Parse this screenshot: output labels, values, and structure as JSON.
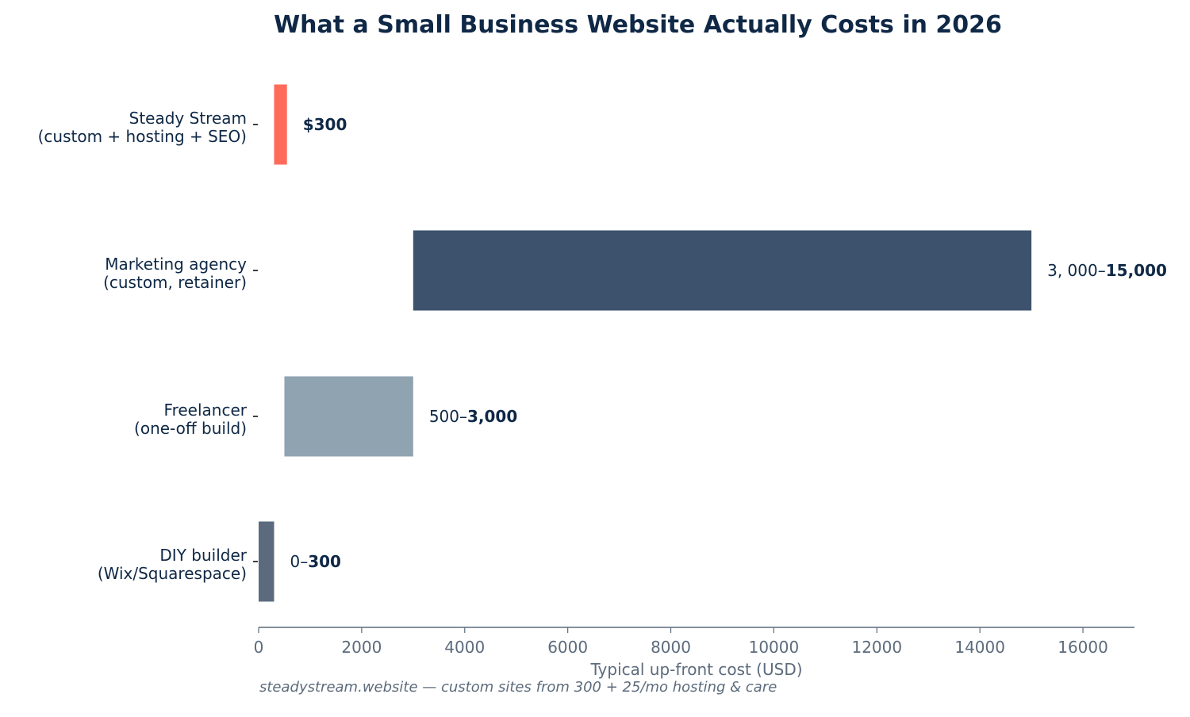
{
  "chart_data": {
    "type": "bar",
    "orientation": "horizontal",
    "title": "What a Small Business Website Actually Costs in 2026",
    "xlabel": "Typical up-front cost (USD)",
    "ylabel": "",
    "xlim": [
      0,
      17000
    ],
    "xticks": [
      0,
      2000,
      4000,
      6000,
      8000,
      10000,
      12000,
      14000,
      16000
    ],
    "grid": false,
    "categories": [
      [
        "Steady Stream",
        "(custom + hosting + SEO)"
      ],
      [
        "Marketing agency",
        "(custom, retainer)"
      ],
      [
        "Freelancer",
        "(one-off build)"
      ],
      [
        "DIY builder",
        "(Wix/Squarespace)"
      ]
    ],
    "ranges": [
      {
        "start": 300,
        "end": 550
      },
      {
        "start": 3000,
        "end": 15000
      },
      {
        "start": 500,
        "end": 3000
      },
      {
        "start": 0,
        "end": 300
      }
    ],
    "value_labels": [
      {
        "prefix": "",
        "bold": "$300"
      },
      {
        "prefix": "3, 000–",
        "bold": "15,000"
      },
      {
        "prefix": "500–",
        "bold": "3,000"
      },
      {
        "prefix": "0–",
        "bold": "300"
      }
    ],
    "colors": [
      "#ff6b5b",
      "#3c526d",
      "#8fa3b1",
      "#5b6b7d"
    ]
  },
  "footer": "steadystream.website — custom sites from 300 + 25/mo hosting & care",
  "colors": {
    "title": "#0f2846",
    "axis": "#5c6b7c",
    "label": "#0f2846"
  }
}
